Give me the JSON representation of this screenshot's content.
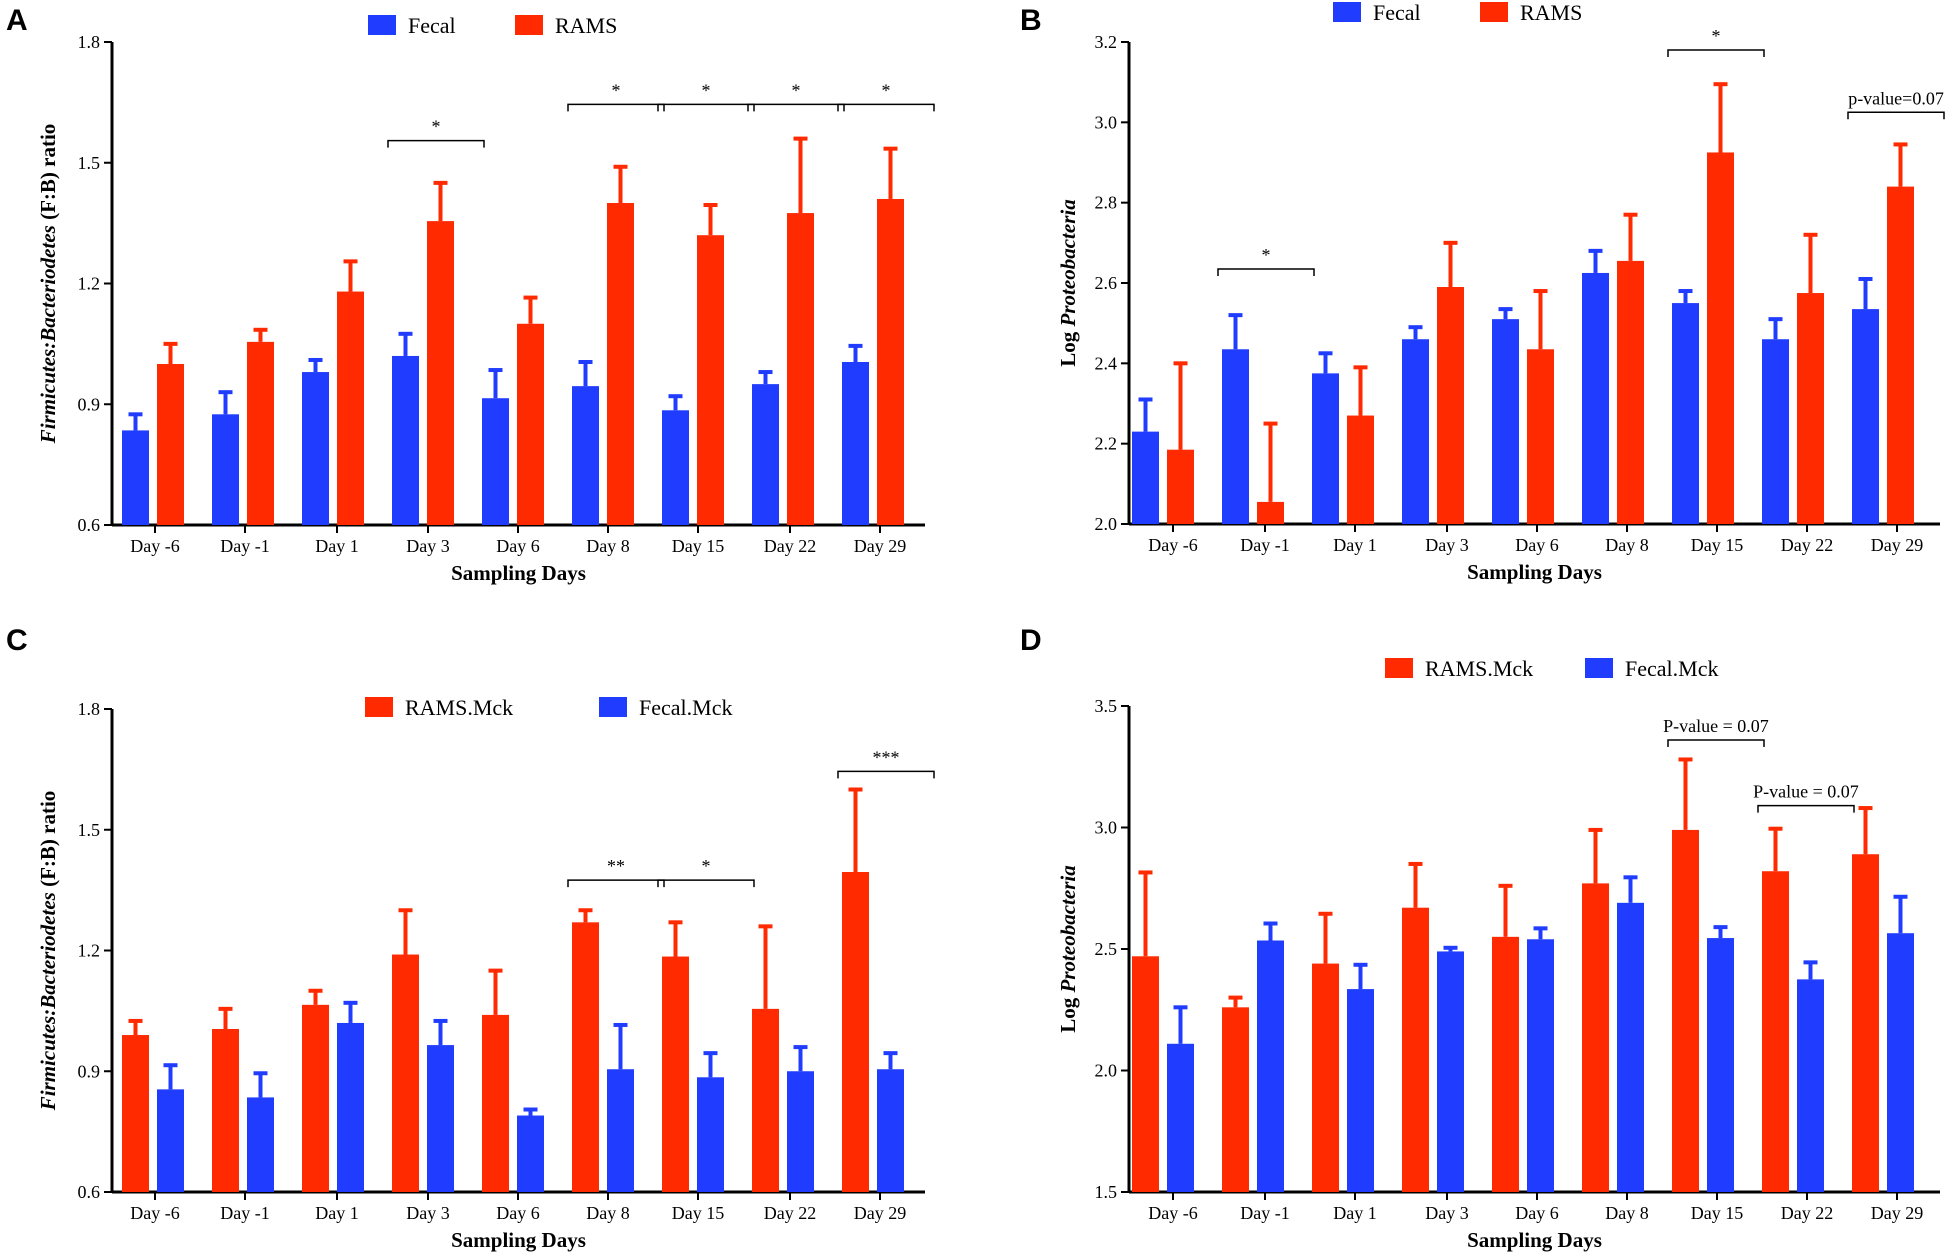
{
  "chart_data": [
    {
      "type": "bar",
      "panel": "A",
      "xlabel": "Sampling Days",
      "ylabel_italic": "Firmicutes:Bacteriodetes",
      "ylabel_rest": " (F:B) ratio",
      "ylim": [
        0.6,
        1.8
      ],
      "yticks": [
        "0.6",
        "0.9",
        "1.2",
        "1.5",
        "1.8"
      ],
      "ytick_values": [
        0.6,
        0.9,
        1.2,
        1.5,
        1.8
      ],
      "categories": [
        "Day -6",
        "Day -1",
        "Day 1",
        "Day 3",
        "Day 6",
        "Day 8",
        "Day 15",
        "Day 22",
        "Day 29"
      ],
      "series": [
        {
          "name": "Fecal",
          "color": "#1f3cff",
          "values": [
            0.835,
            0.875,
            0.98,
            1.02,
            0.915,
            0.945,
            0.885,
            0.95,
            1.005
          ],
          "errors": [
            0.04,
            0.055,
            0.03,
            0.055,
            0.07,
            0.06,
            0.035,
            0.03,
            0.04
          ]
        },
        {
          "name": "RAMS",
          "color": "#ff2a00",
          "values": [
            1.0,
            1.055,
            1.18,
            1.355,
            1.1,
            1.4,
            1.32,
            1.375,
            1.41
          ],
          "errors": [
            0.05,
            0.03,
            0.075,
            0.095,
            0.065,
            0.09,
            0.075,
            0.185,
            0.125
          ]
        }
      ],
      "significance": [
        {
          "label": "*",
          "from": 3,
          "to": 3,
          "y": 1.555
        },
        {
          "label": "*",
          "from": 5,
          "to": 5,
          "y": 1.645
        },
        {
          "label": "*",
          "from": 6,
          "to": 6,
          "y": 1.645
        },
        {
          "label": "*",
          "from": 7,
          "to": 7,
          "y": 1.645
        },
        {
          "label": "*",
          "from": 8,
          "to": 8,
          "y": 1.645
        }
      ],
      "legend": [
        "Fecal",
        "RAMS"
      ]
    },
    {
      "type": "bar",
      "panel": "B",
      "xlabel": "Sampling Days",
      "ylabel_italic": "Proteobacteria",
      "ylabel_prefix": "Log ",
      "ylim": [
        2.0,
        3.2
      ],
      "yticks": [
        "2.0",
        "2.2",
        "2.4",
        "2.6",
        "2.8",
        "3.0",
        "3.2"
      ],
      "ytick_values": [
        2.0,
        2.2,
        2.4,
        2.6,
        2.8,
        3.0,
        3.2
      ],
      "categories": [
        "Day -6",
        "Day -1",
        "Day 1",
        "Day 3",
        "Day 6",
        "Day 8",
        "Day 15",
        "Day 22",
        "Day 29"
      ],
      "series": [
        {
          "name": "Fecal",
          "color": "#1f3cff",
          "values": [
            2.23,
            2.435,
            2.375,
            2.46,
            2.51,
            2.625,
            2.55,
            2.46,
            2.535
          ],
          "errors": [
            0.08,
            0.085,
            0.05,
            0.03,
            0.025,
            0.055,
            0.03,
            0.05,
            0.075
          ]
        },
        {
          "name": "RAMS",
          "color": "#ff2a00",
          "values": [
            2.185,
            2.055,
            2.27,
            2.59,
            2.435,
            2.655,
            2.925,
            2.575,
            2.84
          ],
          "errors": [
            0.215,
            0.195,
            0.12,
            0.11,
            0.145,
            0.115,
            0.17,
            0.145,
            0.105
          ]
        }
      ],
      "significance": [
        {
          "label": "*",
          "from": 1,
          "to": 1,
          "y": 2.635
        },
        {
          "label": "*",
          "from": 6,
          "to": 6,
          "y": 3.18
        },
        {
          "label": "p-value=0.07",
          "from": 8,
          "to": 8,
          "y": 3.025
        }
      ],
      "legend": [
        "Fecal",
        "RAMS"
      ]
    },
    {
      "type": "bar",
      "panel": "C",
      "xlabel": "Sampling Days",
      "ylabel_italic": "Firmicutes:Bacteriodetes",
      "ylabel_rest": " (F:B) ratio",
      "ylim": [
        0.6,
        1.8
      ],
      "yticks": [
        "0.6",
        "0.9",
        "1.2",
        "1.5",
        "1.8"
      ],
      "ytick_values": [
        0.6,
        0.9,
        1.2,
        1.5,
        1.8
      ],
      "categories": [
        "Day -6",
        "Day -1",
        "Day 1",
        "Day 3",
        "Day 6",
        "Day 8",
        "Day 15",
        "Day 22",
        "Day 29"
      ],
      "series": [
        {
          "name": "RAMS.Mck",
          "color": "#ff2a00",
          "values": [
            0.99,
            1.005,
            1.065,
            1.19,
            1.04,
            1.27,
            1.185,
            1.055,
            1.395
          ],
          "errors": [
            0.035,
            0.05,
            0.035,
            0.11,
            0.11,
            0.03,
            0.085,
            0.205,
            0.205
          ]
        },
        {
          "name": "Fecal.Mck",
          "color": "#1f3cff",
          "values": [
            0.855,
            0.835,
            1.02,
            0.965,
            0.79,
            0.905,
            0.885,
            0.9,
            0.905
          ],
          "errors": [
            0.06,
            0.06,
            0.05,
            0.06,
            0.015,
            0.11,
            0.06,
            0.06,
            0.04
          ]
        }
      ],
      "significance": [
        {
          "label": "**",
          "from": 5,
          "to": 5,
          "y": 1.375
        },
        {
          "label": "*",
          "from": 6,
          "to": 6,
          "y": 1.375
        },
        {
          "label": "***",
          "from": 8,
          "to": 8,
          "y": 1.645
        }
      ],
      "legend": [
        "RAMS.Mck",
        "Fecal.Mck"
      ]
    },
    {
      "type": "bar",
      "panel": "D",
      "xlabel": "Sampling Days",
      "ylabel_italic": "Proteobacteria",
      "ylabel_prefix": "Log ",
      "ylim": [
        1.5,
        3.5
      ],
      "yticks": [
        "1.5",
        "2.0",
        "2.5",
        "3.0",
        "3.5"
      ],
      "ytick_values": [
        1.5,
        2.0,
        2.5,
        3.0,
        3.5
      ],
      "categories": [
        "Day -6",
        "Day -1",
        "Day 1",
        "Day 3",
        "Day 6",
        "Day 8",
        "Day 15",
        "Day 22",
        "Day 29"
      ],
      "series": [
        {
          "name": "RAMS.Mck",
          "color": "#ff2a00",
          "values": [
            2.47,
            2.26,
            2.44,
            2.67,
            2.55,
            2.77,
            2.99,
            2.82,
            2.89
          ],
          "errors": [
            0.345,
            0.04,
            0.205,
            0.18,
            0.21,
            0.22,
            0.29,
            0.175,
            0.19
          ]
        },
        {
          "name": "Fecal.Mck",
          "color": "#1f3cff",
          "values": [
            2.11,
            2.535,
            2.335,
            2.49,
            2.54,
            2.69,
            2.545,
            2.375,
            2.565
          ],
          "errors": [
            0.15,
            0.07,
            0.1,
            0.015,
            0.045,
            0.105,
            0.045,
            0.07,
            0.15
          ]
        }
      ],
      "significance": [
        {
          "label": "P-value = 0.07",
          "from": 6,
          "to": 6,
          "y": 3.36
        },
        {
          "label": "P-value = 0.07",
          "from": 7,
          "to": 7,
          "y": 3.09
        }
      ],
      "legend": [
        "RAMS.Mck",
        "Fecal.Mck"
      ]
    }
  ]
}
